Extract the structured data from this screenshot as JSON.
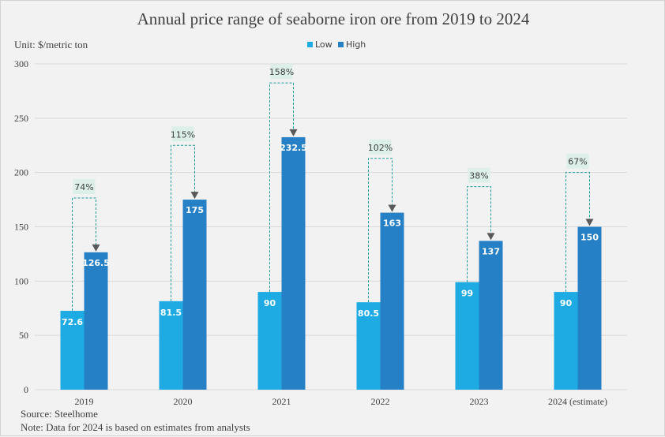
{
  "chart_data": {
    "type": "bar",
    "title": "Annual price range of seaborne iron ore from 2019 to 2024",
    "unit_label": "Unit: $/metric  ton",
    "xlabel": "",
    "ylabel": "",
    "ylim": [
      0,
      300
    ],
    "yticks": [
      0,
      50,
      100,
      150,
      200,
      250,
      300
    ],
    "grid": true,
    "legend_position": "top-center",
    "categories": [
      "2019",
      "2020",
      "2021",
      "2022",
      "2023",
      "2024 (estimate)"
    ],
    "series": [
      {
        "name": "Low",
        "color": "#1eaae2",
        "values": [
          72.6,
          81.5,
          90,
          80.5,
          99,
          90
        ],
        "labels": [
          "72.6",
          "81.5",
          "90",
          "80.5",
          "99",
          "90"
        ]
      },
      {
        "name": "High",
        "color": "#2580c6",
        "values": [
          126.5,
          175,
          232.5,
          163,
          137,
          150
        ],
        "labels": [
          "126.5",
          "175",
          "232.5",
          "163",
          "137",
          "150"
        ]
      }
    ],
    "annotations": {
      "type": "low-to-high increase",
      "values": [
        "74%",
        "115%",
        "158%",
        "102%",
        "38%",
        "67%"
      ]
    },
    "footnotes": [
      "Source: Steelhome",
      "Note: Data for 2024  is based on estimates from  analysts"
    ]
  },
  "colors": {
    "background": "#f2f2f2",
    "grid": "#d9d9d9",
    "connector": "#1b9a9a",
    "arrow": "#595959",
    "pct_box": "#dcefe9"
  }
}
